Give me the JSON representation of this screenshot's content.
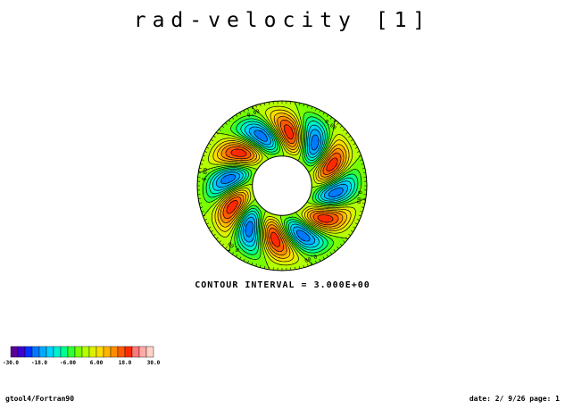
{
  "chart_data": {
    "type": "heatmap",
    "title": "rad-velocity [1]",
    "subtype": "polar contour (annulus)",
    "azimuthal_wavenumber": 6,
    "radius_ratio_inner_outer": 0.35,
    "approx_extreme_values": [
      -20,
      20
    ],
    "contour_interval_label": "CONTOUR INTERVAL = 3.000E+00",
    "contour_labels": [
      "0.00",
      "0.00",
      "0.00",
      "0.00",
      "0.00",
      "0.00"
    ],
    "colorbar": {
      "min": -30,
      "max": 30,
      "tick_labels": [
        "-30.0",
        "-18.0",
        "-6.00",
        "6.00",
        "18.0",
        "30.0"
      ],
      "colors": [
        "#5a0096",
        "#3c00d2",
        "#0032ff",
        "#0078ff",
        "#00aaff",
        "#00d2ff",
        "#00f0d2",
        "#00ff8c",
        "#32ff32",
        "#78ff00",
        "#b4ff00",
        "#dcf000",
        "#ffdc00",
        "#ffb400",
        "#ff8c00",
        "#ff5a00",
        "#ff2800",
        "#ff7878",
        "#ffaaaa",
        "#ffd2c8"
      ]
    },
    "grid": false,
    "legend": "bottom-left"
  },
  "footer": {
    "left": "gtool4/Fortran90",
    "right": "date: 2/ 9/26 page: 1"
  }
}
